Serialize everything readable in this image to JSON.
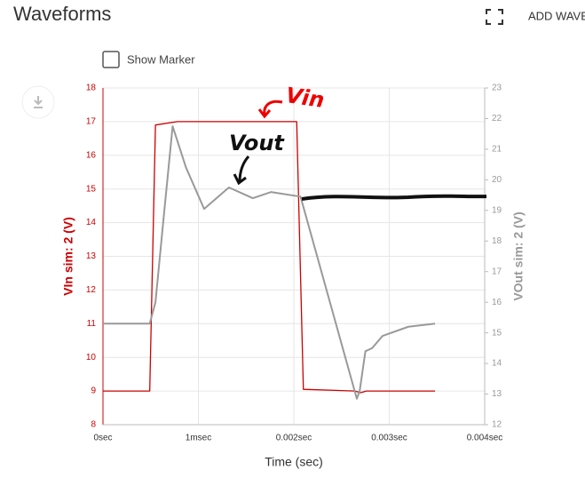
{
  "header": {
    "title": "Waveforms",
    "add_button": "ADD WAVE",
    "checkbox_label": "Show Marker"
  },
  "chart_data": {
    "type": "line",
    "xlabel": "Time (sec)",
    "ylabel": "VIn sim: 2 (V)",
    "y2label": "VOut sim: 2 (V)",
    "xlim": [
      0,
      0.004
    ],
    "xticks": [
      {
        "value": 0,
        "label": "0sec"
      },
      {
        "value": 0.001,
        "label": "1msec"
      },
      {
        "value": 0.002,
        "label": "0.002sec"
      },
      {
        "value": 0.003,
        "label": "0.003sec"
      },
      {
        "value": 0.004,
        "label": "0.004sec"
      }
    ],
    "ylim": [
      8,
      18
    ],
    "yticks": [
      8,
      9,
      10,
      11,
      12,
      13,
      14,
      15,
      16,
      17,
      18
    ],
    "y2lim": [
      12,
      23
    ],
    "y2ticks": [
      12,
      13,
      14,
      15,
      16,
      17,
      18,
      19,
      20,
      21,
      22,
      23
    ],
    "grid": true,
    "annotations": [
      "Vin",
      "Vout"
    ],
    "series": [
      {
        "color": "#cc0000",
        "axis": "y",
        "x": [
          0,
          0.00049,
          0.00055,
          0.00078,
          0.00203,
          0.0021,
          0.00264,
          0.0027,
          0.00276,
          0.00348
        ],
        "values": [
          9,
          9,
          16.9,
          17,
          17,
          9.05,
          9,
          8.95,
          9,
          9
        ]
      },
      {
        "color": "#999999",
        "axis": "y2",
        "x": [
          0,
          0.00049,
          0.00055,
          0.00064,
          0.00073,
          0.00087,
          0.00106,
          0.00132,
          0.00157,
          0.00176,
          0.00207,
          0.00266,
          0.00269,
          0.00275,
          0.00282,
          0.00293,
          0.0032,
          0.00348
        ],
        "values": [
          15.3,
          15.3,
          16,
          18.9,
          21.75,
          20.4,
          19.05,
          19.75,
          19.4,
          19.6,
          19.45,
          12.85,
          13.1,
          14.4,
          14.5,
          14.9,
          15.2,
          15.3
        ]
      }
    ]
  }
}
